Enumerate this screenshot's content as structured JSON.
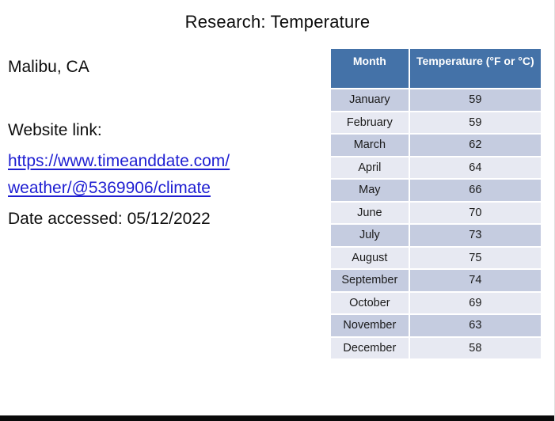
{
  "slide": {
    "title": "Research: Temperature"
  },
  "left_panel": {
    "location": "Malibu, CA",
    "website_label": "Website link:",
    "link_line1": "https://www.timeanddate.com/",
    "link_line2": "weather/@5369906/climate",
    "date_accessed": "Date accessed: 05/12/2022"
  },
  "table": {
    "headers": [
      "Month",
      "Temperature (°F or °C)"
    ],
    "rows": [
      [
        "January",
        "59"
      ],
      [
        "February",
        "59"
      ],
      [
        "March",
        "62"
      ],
      [
        "April",
        "64"
      ],
      [
        "May",
        "66"
      ],
      [
        "June",
        "70"
      ],
      [
        "July",
        "73"
      ],
      [
        "August",
        "75"
      ],
      [
        "September",
        "74"
      ],
      [
        "October",
        "69"
      ],
      [
        "November",
        "63"
      ],
      [
        "December",
        "58"
      ]
    ]
  },
  "colors": {
    "header_bg": "#4472a8",
    "row_odd": "#c5cce0",
    "row_even": "#e7e9f2",
    "link_blue": "#1e1ed2",
    "header_text": "#ffffff",
    "body_text": "#1a1a1a",
    "bottom_bar": "#0a0a0a"
  }
}
